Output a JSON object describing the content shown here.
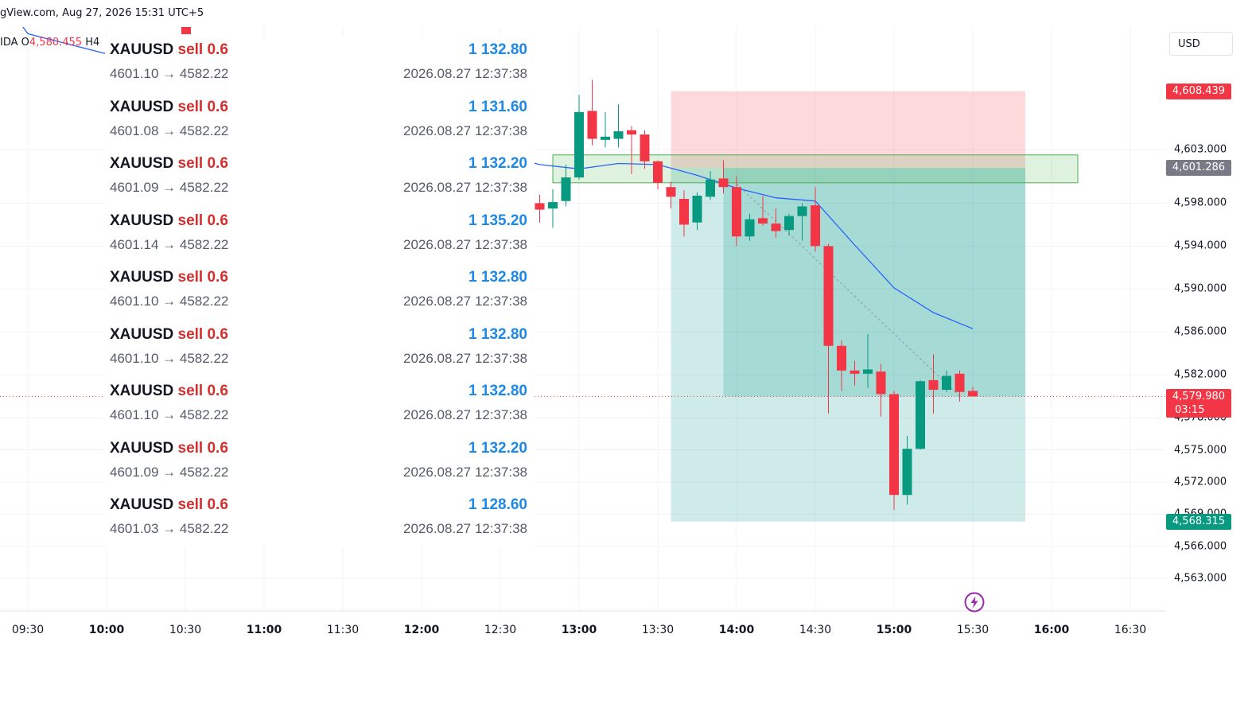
{
  "header": {
    "title": "gView.com, Aug 27, 2026 15:31 UTC+5"
  },
  "symbol_line": {
    "prefix": "IDA",
    "open_label": "O",
    "open_value": "4,580.455",
    "high_label": "H4"
  },
  "currency": "USD",
  "colors": {
    "up": "#089981",
    "down": "#f23645",
    "ma": "#2962ff",
    "profit_zone": "#26a69a",
    "loss_zone": "#f7525f",
    "trade_sell": "#d32f2f",
    "trade_profit": "#1e88e5"
  },
  "icons": {
    "replay": "lightning-bolt-icon"
  },
  "price_scale": {
    "labels": [
      "4,603.000",
      "4,598.000",
      "4,594.000",
      "4,590.000",
      "4,586.000",
      "4,582.000",
      "4,578.000",
      "4,575.000",
      "4,572.000",
      "4,569.000",
      "4,566.000",
      "4,563.000"
    ],
    "badges": {
      "stop": "4,608.439",
      "entry": "4,601.286",
      "current": "4,579.980",
      "countdown": "03:15",
      "target": "4,568.315"
    }
  },
  "time_axis": {
    "labels": [
      {
        "t": "09:30",
        "major": false
      },
      {
        "t": "10:00",
        "major": true
      },
      {
        "t": "10:30",
        "major": false
      },
      {
        "t": "11:00",
        "major": true
      },
      {
        "t": "11:30",
        "major": false
      },
      {
        "t": "12:00",
        "major": true
      },
      {
        "t": "12:30",
        "major": false
      },
      {
        "t": "13:00",
        "major": true
      },
      {
        "t": "13:30",
        "major": false
      },
      {
        "t": "14:00",
        "major": true
      },
      {
        "t": "14:30",
        "major": false
      },
      {
        "t": "15:00",
        "major": true
      },
      {
        "t": "15:30",
        "major": false
      },
      {
        "t": "16:00",
        "major": true
      },
      {
        "t": "16:30",
        "major": false
      }
    ]
  },
  "trades": [
    {
      "symbol": "XAUUSD",
      "side": "sell 0.6",
      "profit": "1 132.80",
      "open": "4601.10",
      "close": "4582.22",
      "arrow": "→",
      "time": "2026.08.27 12:37:38"
    },
    {
      "symbol": "XAUUSD",
      "side": "sell 0.6",
      "profit": "1 131.60",
      "open": "4601.08",
      "close": "4582.22",
      "arrow": "→",
      "time": "2026.08.27 12:37:38"
    },
    {
      "symbol": "XAUUSD",
      "side": "sell 0.6",
      "profit": "1 132.20",
      "open": "4601.09",
      "close": "4582.22",
      "arrow": "→",
      "time": "2026.08.27 12:37:38"
    },
    {
      "symbol": "XAUUSD",
      "side": "sell 0.6",
      "profit": "1 135.20",
      "open": "4601.14",
      "close": "4582.22",
      "arrow": "→",
      "time": "2026.08.27 12:37:38"
    },
    {
      "symbol": "XAUUSD",
      "side": "sell 0.6",
      "profit": "1 132.80",
      "open": "4601.10",
      "close": "4582.22",
      "arrow": "→",
      "time": "2026.08.27 12:37:38"
    },
    {
      "symbol": "XAUUSD",
      "side": "sell 0.6",
      "profit": "1 132.80",
      "open": "4601.10",
      "close": "4582.22",
      "arrow": "→",
      "time": "2026.08.27 12:37:38"
    },
    {
      "symbol": "XAUUSD",
      "side": "sell 0.6",
      "profit": "1 132.80",
      "open": "4601.10",
      "close": "4582.22",
      "arrow": "→",
      "time": "2026.08.27 12:37:38"
    },
    {
      "symbol": "XAUUSD",
      "side": "sell 0.6",
      "profit": "1 132.20",
      "open": "4601.09",
      "close": "4582.22",
      "arrow": "→",
      "time": "2026.08.27 12:37:38"
    },
    {
      "symbol": "XAUUSD",
      "side": "sell 0.6",
      "profit": "1 128.60",
      "open": "4601.03",
      "close": "4582.22",
      "arrow": "→",
      "time": "2026.08.27 12:37:38"
    }
  ],
  "chart_data": {
    "type": "candlestick",
    "ylim": [
      4560.5,
      4617
    ],
    "x_range": [
      "09:15",
      "16:45"
    ],
    "bar_minutes": 5,
    "candles": [
      {
        "t": "12:45",
        "o": 4598.0,
        "h": 4598.8,
        "l": 4596.2,
        "c": 4597.4
      },
      {
        "t": "12:50",
        "o": 4597.5,
        "h": 4599.3,
        "l": 4595.7,
        "c": 4598.1
      },
      {
        "t": "12:55",
        "o": 4598.2,
        "h": 4601.6,
        "l": 4597.7,
        "c": 4600.4
      },
      {
        "t": "13:00",
        "o": 4600.4,
        "h": 4608.1,
        "l": 4600.2,
        "c": 4606.5
      },
      {
        "t": "13:05",
        "o": 4606.6,
        "h": 4609.5,
        "l": 4603.4,
        "c": 4604.0
      },
      {
        "t": "13:10",
        "o": 4603.9,
        "h": 4606.5,
        "l": 4603.2,
        "c": 4604.2
      },
      {
        "t": "13:15",
        "o": 4604.0,
        "h": 4607.2,
        "l": 4603.2,
        "c": 4604.7
      },
      {
        "t": "13:20",
        "o": 4604.8,
        "h": 4605.2,
        "l": 4600.7,
        "c": 4604.4
      },
      {
        "t": "13:25",
        "o": 4604.4,
        "h": 4604.8,
        "l": 4601.2,
        "c": 4601.9
      },
      {
        "t": "13:30",
        "o": 4601.9,
        "h": 4602.0,
        "l": 4599.3,
        "c": 4599.9
      },
      {
        "t": "13:35",
        "o": 4599.5,
        "h": 4600.0,
        "l": 4597.5,
        "c": 4598.6
      },
      {
        "t": "13:40",
        "o": 4598.4,
        "h": 4599.2,
        "l": 4594.9,
        "c": 4596.0
      },
      {
        "t": "13:45",
        "o": 4596.2,
        "h": 4599.0,
        "l": 4595.5,
        "c": 4598.7
      },
      {
        "t": "13:50",
        "o": 4598.6,
        "h": 4601.0,
        "l": 4598.3,
        "c": 4600.2
      },
      {
        "t": "13:55",
        "o": 4600.3,
        "h": 4602.0,
        "l": 4598.9,
        "c": 4599.5
      },
      {
        "t": "14:00",
        "o": 4599.5,
        "h": 4600.5,
        "l": 4594.0,
        "c": 4594.9
      },
      {
        "t": "14:05",
        "o": 4594.9,
        "h": 4597.0,
        "l": 4594.5,
        "c": 4596.5
      },
      {
        "t": "14:10",
        "o": 4596.6,
        "h": 4598.7,
        "l": 4595.9,
        "c": 4596.1
      },
      {
        "t": "14:15",
        "o": 4596.1,
        "h": 4597.5,
        "l": 4594.8,
        "c": 4595.4
      },
      {
        "t": "14:20",
        "o": 4595.5,
        "h": 4597.0,
        "l": 4595.0,
        "c": 4596.8
      },
      {
        "t": "14:25",
        "o": 4596.8,
        "h": 4598.0,
        "l": 4594.5,
        "c": 4597.7
      },
      {
        "t": "14:30",
        "o": 4597.8,
        "h": 4599.5,
        "l": 4593.5,
        "c": 4594.0
      },
      {
        "t": "14:35",
        "o": 4594.0,
        "h": 4594.2,
        "l": 4578.4,
        "c": 4584.7
      },
      {
        "t": "14:40",
        "o": 4584.7,
        "h": 4585.2,
        "l": 4580.5,
        "c": 4582.4
      },
      {
        "t": "14:45",
        "o": 4582.4,
        "h": 4583.3,
        "l": 4581.0,
        "c": 4582.1
      },
      {
        "t": "14:50",
        "o": 4582.1,
        "h": 4585.8,
        "l": 4580.8,
        "c": 4582.5
      },
      {
        "t": "14:55",
        "o": 4582.3,
        "h": 4583.0,
        "l": 4578.1,
        "c": 4580.2
      },
      {
        "t": "15:00",
        "o": 4580.2,
        "h": 4580.5,
        "l": 4569.4,
        "c": 4570.8
      },
      {
        "t": "15:05",
        "o": 4570.8,
        "h": 4576.3,
        "l": 4569.9,
        "c": 4575.1
      },
      {
        "t": "15:10",
        "o": 4575.1,
        "h": 4581.5,
        "l": 4575.0,
        "c": 4581.4
      },
      {
        "t": "15:15",
        "o": 4581.5,
        "h": 4583.9,
        "l": 4578.4,
        "c": 4580.6
      },
      {
        "t": "15:20",
        "o": 4580.6,
        "h": 4582.4,
        "l": 4580.4,
        "c": 4581.9
      },
      {
        "t": "15:25",
        "o": 4582.1,
        "h": 4582.4,
        "l": 4579.5,
        "c": 4580.4
      },
      {
        "t": "15:30",
        "o": 4580.5,
        "h": 4580.9,
        "l": 4580.0,
        "c": 4579.98
      }
    ],
    "moving_average": [
      {
        "t": "09:00",
        "v": 4624.0
      },
      {
        "t": "09:30",
        "v": 4613.8
      },
      {
        "t": "12:45",
        "v": 4601.6
      },
      {
        "t": "13:00",
        "v": 4601.2
      },
      {
        "t": "13:15",
        "v": 4601.7
      },
      {
        "t": "13:30",
        "v": 4601.6
      },
      {
        "t": "13:45",
        "v": 4600.6
      },
      {
        "t": "14:00",
        "v": 4599.4
      },
      {
        "t": "14:15",
        "v": 4598.5
      },
      {
        "t": "14:30",
        "v": 4598.2
      },
      {
        "t": "14:45",
        "v": 4594.1
      },
      {
        "t": "15:00",
        "v": 4590.1
      },
      {
        "t": "15:15",
        "v": 4587.8
      },
      {
        "t": "15:30",
        "v": 4586.3
      }
    ],
    "position": {
      "side": "short",
      "start": "13:35",
      "end": "15:50",
      "entry": 4601.286,
      "stop": 4608.439,
      "target": 4568.315,
      "current": 4579.98,
      "active_from": "13:55"
    },
    "zone": {
      "start": "12:50",
      "end": "16:10",
      "top": 4602.5,
      "bottom": 4599.9
    },
    "trend_line": {
      "from": {
        "t": "14:00",
        "v": 4599.8
      },
      "to": {
        "t": "15:25",
        "v": 4580.0
      }
    }
  }
}
